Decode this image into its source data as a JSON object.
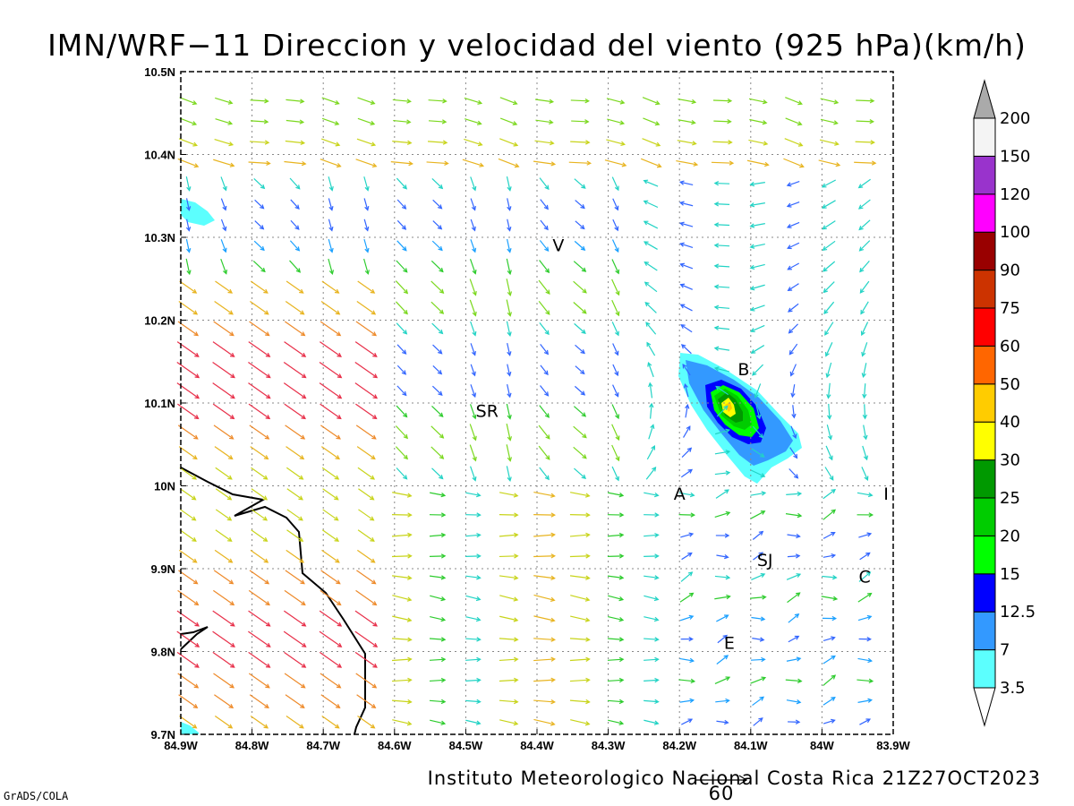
{
  "title": "IMN/WRF−11 Direccion y velocidad del viento (925 hPa)(km/h)",
  "footer": "Instituto Meteorologico Nacional Costa Rica 21Z27OCT2023",
  "grads_label": "GrADS/COLA",
  "vector_key": {
    "label": "60",
    "value": 60
  },
  "map": {
    "lon_range": [
      -84.9,
      -83.9
    ],
    "lat_range": [
      9.7,
      10.5
    ],
    "lon_ticks": [
      "84.9W",
      "84.8W",
      "84.7W",
      "84.6W",
      "84.5W",
      "84.4W",
      "84.3W",
      "84.2W",
      "84.1W",
      "84W",
      "83.9W"
    ],
    "lat_ticks": [
      "9.7N",
      "9.8N",
      "9.9N",
      "10N",
      "10.1N",
      "10.2N",
      "10.3N",
      "10.4N",
      "10.5N"
    ],
    "grid": true
  },
  "colorbar": {
    "labels": [
      "3.5",
      "7",
      "12.5",
      "15",
      "20",
      "25",
      "30",
      "40",
      "50",
      "60",
      "75",
      "90",
      "100",
      "120",
      "150",
      "200"
    ],
    "colors": [
      "#5cfffe",
      "#3399ff",
      "#0000ff",
      "#00ff00",
      "#00cc00",
      "#009900",
      "#ffff00",
      "#ffcc00",
      "#ff6600",
      "#ff0000",
      "#cc3300",
      "#990000",
      "#ff00ff",
      "#9933cc",
      "#f4f4f4",
      "#aaaaaa"
    ]
  },
  "places": [
    {
      "label": "V",
      "lon": -84.37,
      "lat": 10.29
    },
    {
      "label": "SR",
      "lon": -84.47,
      "lat": 10.09
    },
    {
      "label": "B",
      "lon": -84.11,
      "lat": 10.14
    },
    {
      "label": "A",
      "lon": -84.2,
      "lat": 9.99
    },
    {
      "label": "I",
      "lon": -83.91,
      "lat": 9.99
    },
    {
      "label": "SJ",
      "lon": -84.08,
      "lat": 9.91
    },
    {
      "label": "C",
      "lon": -83.94,
      "lat": 9.89
    },
    {
      "label": "E",
      "lon": -84.13,
      "lat": 9.81
    }
  ]
}
